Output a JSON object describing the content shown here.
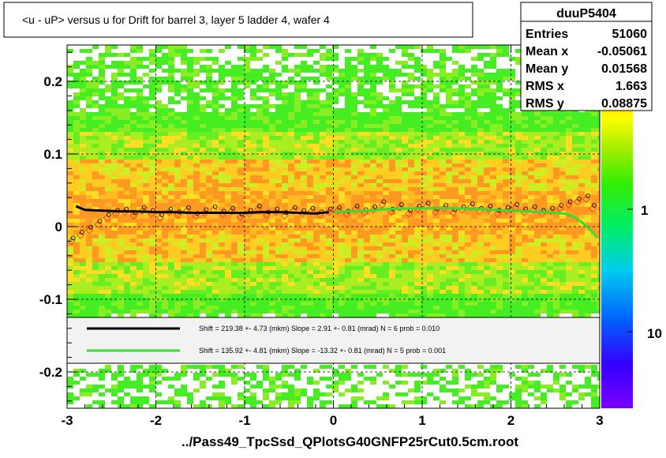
{
  "title": "<u - uP>       versus   u for Drift for barrel 3, layer 5 ladder 4, wafer 4",
  "stats": {
    "name": "duuP5404",
    "rows": [
      {
        "label": "Entries",
        "value": "51060"
      },
      {
        "label": "Mean x",
        "value": "-0.05061"
      },
      {
        "label": "Mean y",
        "value": "0.01568"
      },
      {
        "label": "RMS x",
        "value": "1.663"
      },
      {
        "label": "RMS y",
        "value": "0.08875"
      }
    ]
  },
  "footer": "../Pass49_TpcSsd_QPlotsG40GNFP25rCut0.5cm.root",
  "colors": {
    "fit_black": "#000000",
    "fit_green": "#33dd33",
    "marker": "#ff4422",
    "band_green": "#44ee22",
    "band_yellow": "#ccee22",
    "band_orange": "#ff9922"
  },
  "chart_data": {
    "type": "heatmap",
    "xlim": [
      -3,
      3
    ],
    "ylim": [
      -0.25,
      0.25
    ],
    "x_ticks": [
      "-3",
      "-2",
      "-1",
      "0",
      "1",
      "2",
      "3"
    ],
    "y_ticks": [
      "-0.2",
      "-0.1",
      "0",
      "0.1",
      "0.2"
    ],
    "y_tick_values": [
      -0.2,
      -0.1,
      0,
      0.1,
      0.2
    ],
    "colorbar": {
      "scale": "log",
      "ticks": [
        "1",
        "10"
      ],
      "partial_tick": "0"
    },
    "grid": true,
    "series": [
      {
        "x": [
          -2.9,
          -2.8,
          -2.6,
          -2.4,
          -2.2,
          -2.0,
          -1.8,
          -1.6,
          -1.4,
          -1.2,
          -1.0,
          -0.8,
          -0.6,
          -0.4,
          -0.2,
          -0.05
        ],
        "y": [
          0.028,
          0.023,
          0.022,
          0.021,
          0.021,
          0.02,
          0.02,
          0.019,
          0.019,
          0.019,
          0.019,
          0.02,
          0.02,
          0.019,
          0.018,
          0.02
        ]
      },
      {
        "x": [
          0.0,
          0.2,
          0.4,
          0.6,
          0.8,
          1.0,
          1.2,
          1.4,
          1.6,
          1.8,
          2.0,
          2.2,
          2.4,
          2.6,
          2.7,
          2.8,
          2.9,
          2.97
        ],
        "y": [
          0.02,
          0.021,
          0.022,
          0.024,
          0.025,
          0.025,
          0.026,
          0.025,
          0.024,
          0.023,
          0.022,
          0.021,
          0.02,
          0.018,
          0.014,
          0.006,
          -0.005,
          -0.015
        ]
      }
    ],
    "profile_points": {
      "x": [
        -2.95,
        -2.85,
        -2.75,
        -2.65,
        -2.55,
        -2.45,
        -2.35,
        -2.25,
        -2.15,
        -2.05,
        -1.95,
        -1.85,
        -1.75,
        -1.65,
        -1.55,
        -1.45,
        -1.35,
        -1.25,
        -1.15,
        -1.05,
        -0.95,
        -0.85,
        -0.75,
        -0.65,
        -0.55,
        -0.45,
        -0.35,
        -0.25,
        -0.15,
        -0.05,
        0.05,
        0.15,
        0.25,
        0.35,
        0.45,
        0.55,
        0.65,
        0.75,
        0.85,
        0.95,
        1.05,
        1.15,
        1.25,
        1.35,
        1.45,
        1.55,
        1.65,
        1.75,
        1.85,
        1.95,
        2.05,
        2.15,
        2.25,
        2.35,
        2.45,
        2.55,
        2.65,
        2.75,
        2.85,
        2.92
      ],
      "y": [
        -0.02,
        -0.012,
        -0.005,
        0.003,
        0.012,
        0.018,
        0.02,
        0.015,
        0.022,
        0.018,
        0.012,
        0.02,
        0.016,
        0.022,
        0.014,
        0.019,
        0.023,
        0.017,
        0.021,
        0.013,
        0.018,
        0.024,
        0.016,
        0.02,
        0.015,
        0.022,
        0.018,
        0.021,
        0.016,
        0.02,
        0.022,
        0.017,
        0.024,
        0.019,
        0.023,
        0.03,
        0.02,
        0.026,
        0.018,
        0.024,
        0.028,
        0.02,
        0.025,
        0.019,
        0.023,
        0.027,
        0.021,
        0.024,
        0.018,
        0.022,
        0.026,
        0.02,
        0.023,
        0.018,
        0.021,
        0.025,
        0.03,
        0.034,
        0.038,
        0.025
      ]
    },
    "legend": {
      "placement": "lower-center",
      "entries": [
        {
          "text": "Shift =   219.38 +- 4.73 (mkm) Slope =     2.91 +- 0.81 (mrad)  N = 6 prob = 0.010"
        },
        {
          "text": "Shift =   135.92 +- 4.81 (mkm) Slope =   -13.32 +- 0.81 (mrad)  N = 5 prob = 0.001"
        }
      ]
    }
  }
}
